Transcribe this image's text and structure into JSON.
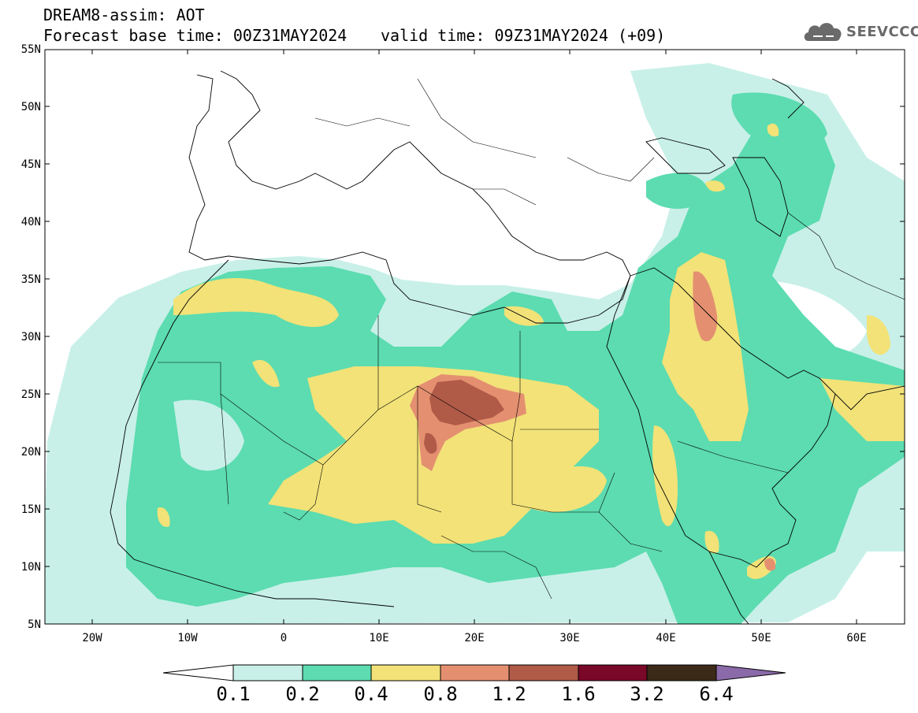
{
  "header": {
    "line1": "DREAM8-assim: AOT",
    "line2": "Forecast base time: 00Z31MAY2024",
    "line3": "valid time: 09Z31MAY2024 (+09)"
  },
  "logo": {
    "text": "SEEVCCC",
    "icon": "cloud-icon"
  },
  "map": {
    "lat_labels": [
      "55N",
      "50N",
      "45N",
      "40N",
      "35N",
      "30N",
      "25N",
      "20N",
      "15N",
      "10N",
      "5N"
    ],
    "lon_labels": [
      "20W",
      "10W",
      "0",
      "10E",
      "20E",
      "30E",
      "40E",
      "50E",
      "60E"
    ],
    "lon_range": [
      -25,
      65
    ],
    "lat_range": [
      5,
      55
    ]
  },
  "colorbar": {
    "ticks": [
      "0.1",
      "0.2",
      "0.4",
      "0.8",
      "1.2",
      "1.6",
      "3.2",
      "6.4"
    ],
    "colors": [
      "#ffffff",
      "#c8f0e8",
      "#5cdcb0",
      "#f2e278",
      "#e49070",
      "#b05a48",
      "#7a0828",
      "#3c2a18",
      "#8a6aa8"
    ]
  }
}
